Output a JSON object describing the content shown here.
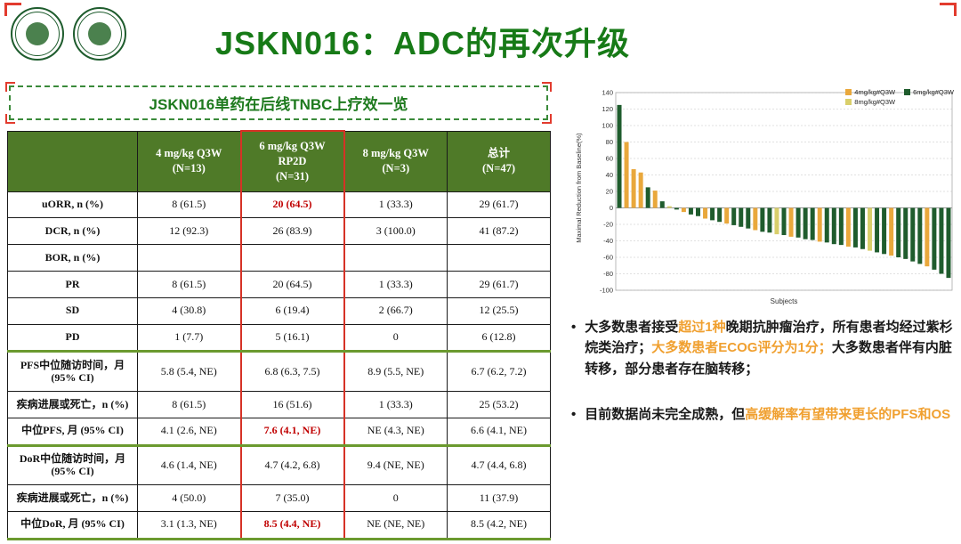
{
  "header": {
    "title": "JSKN016：ADC的再次升级"
  },
  "table_panel": {
    "title": "JSKN016单药在后线TNBC上疗效一览",
    "columns": [
      "",
      "4 mg/kg Q3W\n(N=13)",
      "6 mg/kg Q3W\nRP2D\n(N=31)",
      "8 mg/kg Q3W\n(N=3)",
      "总计\n(N=47)"
    ],
    "rows": [
      {
        "label": "uORR, n (%)",
        "values": [
          "8 (61.5)",
          "20 (64.5)",
          "1 (33.3)",
          "29 (61.7)"
        ],
        "red_cols": [
          1
        ],
        "section_break": false
      },
      {
        "label": "DCR, n (%)",
        "values": [
          "12 (92.3)",
          "26 (83.9)",
          "3 (100.0)",
          "41 (87.2)"
        ],
        "red_cols": [],
        "section_break": false
      },
      {
        "label": "BOR, n (%)",
        "values": [
          "",
          "",
          "",
          ""
        ],
        "red_cols": [],
        "section_break": false
      },
      {
        "label": "PR",
        "values": [
          "8 (61.5)",
          "20 (64.5)",
          "1 (33.3)",
          "29 (61.7)"
        ],
        "red_cols": [],
        "section_break": false
      },
      {
        "label": "SD",
        "values": [
          "4 (30.8)",
          "6 (19.4)",
          "2 (66.7)",
          "12 (25.5)"
        ],
        "red_cols": [],
        "section_break": false
      },
      {
        "label": "PD",
        "values": [
          "1 (7.7)",
          "5 (16.1)",
          "0",
          "6 (12.8)"
        ],
        "red_cols": [],
        "section_break": false
      },
      {
        "label": "PFS中位随访时间，月\n(95% CI)",
        "values": [
          "5.8 (5.4, NE)",
          "6.8 (6.3, 7.5)",
          "8.9 (5.5, NE)",
          "6.7 (6.2, 7.2)"
        ],
        "red_cols": [],
        "section_break": true
      },
      {
        "label": "疾病进展或死亡，n (%)",
        "values": [
          "8 (61.5)",
          "16 (51.6)",
          "1 (33.3)",
          "25 (53.2)"
        ],
        "red_cols": [],
        "section_break": false
      },
      {
        "label": "中位PFS, 月 (95% CI)",
        "values": [
          "4.1 (2.6, NE)",
          "7.6 (4.1, NE)",
          "NE (4.3, NE)",
          "6.6 (4.1, NE)"
        ],
        "red_cols": [
          1
        ],
        "section_break": false
      },
      {
        "label": "DoR中位随访时间，月\n(95% CI)",
        "values": [
          "4.6 (1.4, NE)",
          "4.7 (4.2, 6.8)",
          "9.4 (NE, NE)",
          "4.7 (4.4, 6.8)"
        ],
        "red_cols": [],
        "section_break": true
      },
      {
        "label": "疾病进展或死亡，n (%)",
        "values": [
          "4 (50.0)",
          "7 (35.0)",
          "0",
          "11 (37.9)"
        ],
        "red_cols": [],
        "section_break": false
      },
      {
        "label": "中位DoR, 月 (95% CI)",
        "values": [
          "3.1 (1.3, NE)",
          "8.5 (4.4, NE)",
          "NE (NE, NE)",
          "8.5 (4.2, NE)"
        ],
        "red_cols": [
          1
        ],
        "section_break": false
      }
    ]
  },
  "bullets": [
    {
      "segments": [
        {
          "text": "大多数患者接受",
          "highlight": false
        },
        {
          "text": "超过1种",
          "highlight": true
        },
        {
          "text": "晚期抗肿瘤治疗，所有患者均经过紫杉烷类治疗；",
          "highlight": false
        },
        {
          "text": "大多数患者ECOG评分为1分；",
          "highlight": true
        },
        {
          "text": "大多数患者伴有内脏转移，部分患者存在脑转移；",
          "highlight": false
        }
      ]
    },
    {
      "segments": [
        {
          "text": "目前数据尚未完全成熟，但",
          "highlight": false
        },
        {
          "text": "高缓解率有望带来更长的PFS和OS",
          "highlight": true
        }
      ]
    }
  ],
  "chart_data": {
    "type": "bar",
    "title": "",
    "ylabel": "Maximal Reduction from Baseline(%)",
    "xlabel": "Subjects",
    "ylim": [
      -100,
      140
    ],
    "ytick_step": 20,
    "grid": true,
    "legend_position": "top-right",
    "legend": [
      {
        "label": "4mg/kg#Q3W",
        "group": "4"
      },
      {
        "label": "6mg/kg#Q3W",
        "group": "6"
      },
      {
        "label": "8mg/kg#Q3W",
        "group": "8"
      }
    ],
    "group_colors": {
      "4": "#E9A83C",
      "6": "#1F5C2D",
      "8": "#D9CF6B"
    },
    "values": [
      125,
      80,
      47,
      43,
      25,
      21,
      8,
      2,
      -2,
      -5,
      -8,
      -10,
      -13,
      -15,
      -17,
      -19,
      -21,
      -23,
      -25,
      -27,
      -29,
      -30,
      -32,
      -33,
      -35,
      -36,
      -38,
      -39,
      -41,
      -42,
      -44,
      -45,
      -47,
      -48,
      -50,
      -52,
      -54,
      -56,
      -58,
      -60,
      -62,
      -65,
      -68,
      -71,
      -75,
      -80,
      -85
    ],
    "groups": [
      "6",
      "4",
      "4",
      "4",
      "6",
      "4",
      "6",
      "8",
      "6",
      "4",
      "6",
      "6",
      "4",
      "6",
      "6",
      "4",
      "6",
      "6",
      "6",
      "4",
      "6",
      "6",
      "8",
      "6",
      "4",
      "6",
      "6",
      "6",
      "4",
      "6",
      "6",
      "6",
      "4",
      "6",
      "6",
      "8",
      "6",
      "6",
      "4",
      "6",
      "6",
      "6",
      "6",
      "4",
      "6",
      "6",
      "6"
    ]
  },
  "colors": {
    "title_green": "#177A17",
    "header_green": "#4F7A28",
    "accent_red": "#C00000",
    "highlight_orange": "#F0A030",
    "divider_green": "#6B9A2F"
  }
}
